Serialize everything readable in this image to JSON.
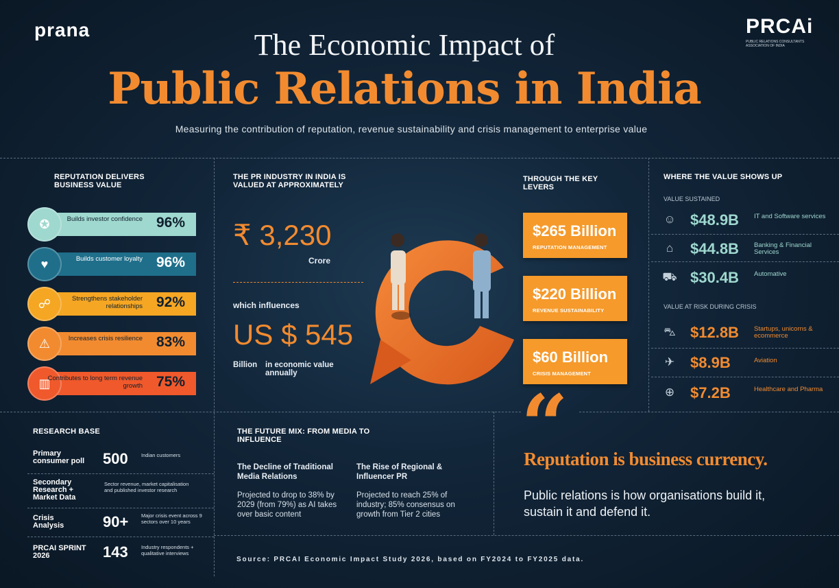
{
  "header": {
    "logo_left": "prana",
    "logo_right": "PRCAi",
    "logo_right_sub": "PUBLIC RELATIONS CONSULTANTS ASSOCIATION OF INDIA",
    "title_line1": "The Economic Impact of",
    "title_line2": "Public Relations in India",
    "subtitle": "Measuring the contribution of reputation, revenue sustainability and crisis management to enterprise value"
  },
  "reputation": {
    "heading": "REPUTATION DELIVERS BUSINESS VALUE",
    "items": [
      {
        "label": "Builds investor confidence",
        "value": "96%",
        "icon": "investor-icon",
        "color": "#9fd8cf"
      },
      {
        "label": "Builds customer loyalty",
        "value": "96%",
        "icon": "loyalty-icon",
        "color": "#1f6f8b"
      },
      {
        "label": "Strengthens stakeholder relationships",
        "value": "92%",
        "icon": "handshake-icon",
        "color": "#f5a623"
      },
      {
        "label": "Increases crisis resilience",
        "value": "83%",
        "icon": "resilience-icon",
        "color": "#f28b30"
      },
      {
        "label": "Contributes to long term revenue growth",
        "value": "75%",
        "icon": "growth-icon",
        "color": "#f0592b"
      }
    ]
  },
  "industry": {
    "heading": "THE PR INDUSTRY IN INDIA IS VALUED AT APPROXIMATELY",
    "value": "₹ 3,230",
    "unit": "Crore",
    "influences": "which influences",
    "econ_value": "US $ 545",
    "econ_unit": "Billion",
    "econ_desc": "in economic value annually"
  },
  "levers": {
    "heading": "THROUGH THE KEY LEVERS",
    "items": [
      {
        "value": "$265 Billion",
        "label": "REPUTATION MANAGEMENT"
      },
      {
        "value": "$220 Billion",
        "label": "REVENUE SUSTAINABILITY"
      },
      {
        "value": "$60 Billion",
        "label": "CRISIS MANAGEMENT"
      }
    ]
  },
  "value_shows": {
    "heading": "WHERE THE VALUE SHOWS UP",
    "sustained_heading": "VALUE SUSTAINED",
    "sustained": [
      {
        "amount": "$48.9B",
        "label": "IT and Software services",
        "icon": "people-icon"
      },
      {
        "amount": "$44.8B",
        "label": "Banking & Financial Services",
        "icon": "bank-icon"
      },
      {
        "amount": "$30.4B",
        "label": "Automative",
        "icon": "car-icon"
      }
    ],
    "risk_heading": "VALUE AT RISK DURING CRISIS",
    "risk": [
      {
        "amount": "$12.8B",
        "label": "Startups, unicorns & ecommerce",
        "icon": "cart-icon"
      },
      {
        "amount": "$8.9B",
        "label": "Aviation",
        "icon": "plane-icon"
      },
      {
        "amount": "$7.2B",
        "label": "Healthcare and Pharma",
        "icon": "health-icon"
      }
    ]
  },
  "research": {
    "heading": "RESEARCH BASE",
    "rows": [
      {
        "key": "Primary consumer poll",
        "num": "500",
        "desc": "Indian customers"
      },
      {
        "key": "Secondary Research + Market Data",
        "num": "",
        "desc": "Sector revenue, market capitalisation and published investor research"
      },
      {
        "key": "Crisis Analysis",
        "num": "90+",
        "desc": "Major crisis event across 9 sectors over 10 years"
      },
      {
        "key": "PRCAI SPRINT 2026",
        "num": "143",
        "desc": "Industry respondents + qualitative interviews"
      }
    ]
  },
  "future": {
    "heading": "THE FUTURE MIX: FROM MEDIA TO INFLUENCE",
    "col1_title": "The Decline of Traditional Media Relations",
    "col1_text": "Projected to drop to 38% by 2029 (from 79%) as AI takes over basic content",
    "col2_title": "The Rise of Regional & Influencer PR",
    "col2_text": "Projected to reach 25% of industry; 85% consensus on growth from Tier 2 cities"
  },
  "quote": {
    "mark": "“",
    "headline": "Reputation is business currency.",
    "body": "Public relations is how organisations build it, sustain it and defend it."
  },
  "source": "Source: PRCAI Economic Impact Study 2026, based on FY2024 to FY2025 data.",
  "colors": {
    "accent": "#f28b30",
    "background": "#0c1a28",
    "lever": "#f59a2b"
  }
}
